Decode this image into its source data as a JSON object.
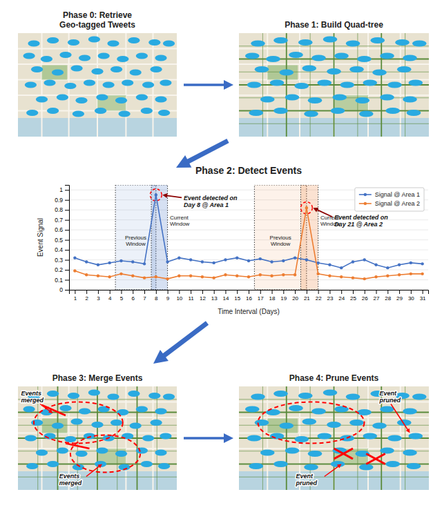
{
  "chart_data": [
    {
      "type": "map",
      "title": "Phase 0: Retrieve\nGeo-tagged Tweets",
      "grid": false
    },
    {
      "type": "map",
      "title": "Phase 1: Build Quad-tree",
      "grid": true
    },
    {
      "type": "line",
      "title": "Phase 2: Detect Events",
      "xlabel": "Time Interval (Days)",
      "ylabel": "Event Signal",
      "x": [
        1,
        2,
        3,
        4,
        5,
        6,
        7,
        8,
        9,
        10,
        11,
        12,
        13,
        14,
        15,
        16,
        17,
        18,
        19,
        20,
        21,
        22,
        23,
        24,
        25,
        26,
        27,
        28,
        29,
        30,
        31
      ],
      "xlim": [
        0.5,
        31.5
      ],
      "xticks": [
        1,
        2,
        3,
        4,
        5,
        6,
        7,
        8,
        9,
        10,
        11,
        12,
        13,
        14,
        15,
        16,
        17,
        18,
        19,
        20,
        21,
        22,
        23,
        24,
        25,
        26,
        27,
        28,
        29,
        30,
        31
      ],
      "ylim": [
        0,
        1.05
      ],
      "yticks": [
        0,
        0.1,
        0.2,
        0.3,
        0.4,
        0.5,
        0.6,
        0.7,
        0.8,
        0.9,
        1
      ],
      "grid": true,
      "legend": "upper right",
      "series": [
        {
          "name": "Signal @ Area 1",
          "color": "#4472c4",
          "marker": "circle",
          "values": [
            0.32,
            0.28,
            0.25,
            0.27,
            0.29,
            0.28,
            0.26,
            0.95,
            0.28,
            0.32,
            0.3,
            0.28,
            0.27,
            0.3,
            0.32,
            0.29,
            0.31,
            0.28,
            0.29,
            0.32,
            0.3,
            0.27,
            0.25,
            0.22,
            0.28,
            0.3,
            0.25,
            0.22,
            0.25,
            0.27,
            0.26
          ]
        },
        {
          "name": "Signal @ Area 2",
          "color": "#ed7d31",
          "marker": "circle",
          "values": [
            0.19,
            0.15,
            0.14,
            0.13,
            0.16,
            0.14,
            0.12,
            0.13,
            0.11,
            0.14,
            0.14,
            0.13,
            0.12,
            0.15,
            0.14,
            0.13,
            0.15,
            0.14,
            0.15,
            0.15,
            0.82,
            0.16,
            0.14,
            0.13,
            0.12,
            0.11,
            0.13,
            0.14,
            0.15,
            0.16,
            0.16
          ]
        }
      ],
      "windows": [
        {
          "label": "Previous\nWindow",
          "x0": 4.5,
          "x1": 8
        },
        {
          "label": "Current\nWindow",
          "x0": 7.6,
          "x1": 9
        },
        {
          "label": "Previous\nWindow",
          "x0": 16.5,
          "x1": 21
        },
        {
          "label": "Current\nWindow",
          "x0": 20.5,
          "x1": 22
        }
      ],
      "annotations": [
        {
          "text": "Event detected on\nDay 8 @ Area 1",
          "x": 8,
          "y": 0.95
        },
        {
          "text": "Event detected on\nDay 21 @ Area 2",
          "x": 21,
          "y": 0.82
        }
      ]
    },
    {
      "type": "map",
      "title": "Phase 3: Merge Events",
      "grid": true,
      "annotations": [
        "Events\nmerged",
        "Events\nmerged"
      ]
    },
    {
      "type": "map",
      "title": "Phase 4: Prune Events",
      "grid": true,
      "annotations": [
        "Event\npruned",
        "Event\npruned"
      ]
    }
  ]
}
